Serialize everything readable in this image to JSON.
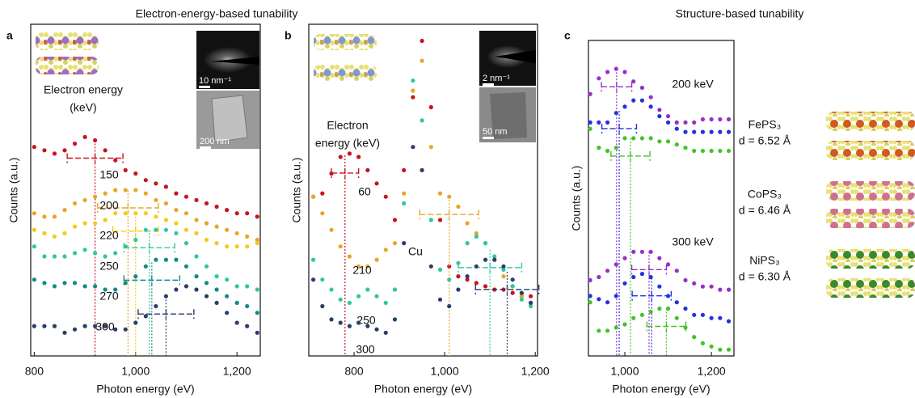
{
  "chart_data": [
    {
      "type": "scatter",
      "panel": "a",
      "header": "Electron-energy-based tunability",
      "xlabel": "Photon energy (eV)",
      "ylabel": "Counts (a.u.)",
      "annotations": [
        "Electron energy",
        "(keV)"
      ],
      "inset_labels": [
        "10 nm⁻¹",
        "200 nm"
      ],
      "xlim": [
        793,
        1246
      ],
      "ylim": [
        0,
        100
      ],
      "xticks": [
        800,
        {
          "value": 1000,
          "label": "1,000"
        },
        {
          "value": 1200,
          "label": "1,200"
        }
      ],
      "x": [
        800,
        820,
        840,
        860,
        880,
        900,
        920,
        940,
        960,
        980,
        1000,
        1020,
        1040,
        1060,
        1080,
        1100,
        1120,
        1140,
        1160,
        1180,
        1200,
        1220,
        1240
      ],
      "series": [
        {
          "name": "150",
          "color": "#c8141e",
          "peak": 920,
          "peak_error": 55,
          "values": [
            63,
            62,
            61,
            62,
            64,
            66,
            65,
            62,
            59,
            56,
            55,
            53,
            52,
            51,
            49,
            48,
            47,
            46,
            45,
            44,
            43,
            43,
            42
          ]
        },
        {
          "name": "200",
          "color": "#e8a628",
          "peak": 985,
          "peak_error": 60,
          "values": [
            43,
            42,
            42,
            44,
            46,
            47,
            48,
            49,
            50,
            50,
            50,
            49,
            47,
            46,
            44,
            43,
            41,
            40,
            39,
            38,
            37,
            36,
            35
          ]
        },
        {
          "name": "220",
          "color": "#f2cc1a",
          "peak": 1000,
          "peak_error": 45,
          "values": [
            38,
            37,
            36,
            37,
            39,
            40,
            40,
            41,
            43,
            43,
            43,
            43,
            42,
            41,
            40,
            38,
            37,
            35,
            34,
            33,
            33,
            33,
            34
          ]
        },
        {
          "name": "250",
          "color": "#2ec8a0",
          "peak": 1027,
          "peak_error": 50,
          "values": [
            33,
            30,
            30,
            30,
            31,
            32,
            31,
            30,
            31,
            33,
            35,
            38,
            38,
            38,
            37,
            34,
            30,
            27,
            24,
            23,
            21,
            21,
            20
          ]
        },
        {
          "name": "270",
          "color": "#138a86",
          "peak": 1032,
          "peak_error": 55,
          "values": [
            23,
            22,
            21,
            22,
            22,
            21,
            21,
            20,
            20,
            22,
            24,
            27,
            29,
            29,
            29,
            27,
            24,
            22,
            20,
            18,
            16,
            15,
            13
          ]
        },
        {
          "name": "300",
          "color": "#2b3d6b",
          "peak": 1060,
          "peak_error": 55,
          "values": [
            9,
            9,
            9,
            7,
            8,
            9,
            9,
            9,
            8,
            8,
            10,
            12,
            15,
            18,
            20,
            21,
            20,
            18,
            16,
            13,
            10,
            9,
            7
          ]
        }
      ]
    },
    {
      "type": "scatter",
      "panel": "b",
      "xlabel": "Photon energy (eV)",
      "ylabel": "Counts (a.u.)",
      "annotations": [
        "Electron",
        "energy (keV)",
        "Cu"
      ],
      "inset_labels": [
        "2 nm⁻¹",
        "50 nm"
      ],
      "xlim": [
        700,
        1205
      ],
      "ylim": [
        0,
        100
      ],
      "xticks": [
        800,
        {
          "value": 1000,
          "label": "1,000"
        },
        {
          "value": 1200,
          "label": "1,200"
        }
      ],
      "x": [
        710,
        730,
        750,
        770,
        790,
        810,
        830,
        850,
        870,
        890,
        910,
        930,
        950,
        970,
        990,
        1010,
        1030,
        1050,
        1070,
        1090,
        1110,
        1130,
        1150,
        1170,
        1190
      ],
      "series": [
        {
          "name": "60",
          "color": "#c8141e",
          "peak": 780,
          "peak_error": 30,
          "values": [
            48,
            49,
            55,
            60,
            61,
            60,
            56,
            52,
            48,
            41,
            56,
            78,
            95,
            75,
            41,
            27,
            24,
            23,
            22,
            21,
            20,
            20,
            19,
            18,
            18
          ]
        },
        {
          "name": "210",
          "color": "#e8a628",
          "peak": 1010,
          "peak_error": 65,
          "values": [
            48,
            43,
            38,
            33,
            30,
            27,
            27,
            29,
            32,
            34,
            49,
            80,
            89,
            63,
            49,
            48,
            45,
            40,
            37,
            34,
            29,
            24,
            21,
            18,
            16
          ]
        },
        {
          "name": "250",
          "color": "#2ec8a0",
          "peak": 1100,
          "peak_error": 70,
          "values": [
            29,
            23,
            20,
            17,
            16,
            18,
            20,
            18,
            16,
            20,
            46,
            83,
            71,
            41,
            26,
            23,
            28,
            34,
            36,
            34,
            30,
            26,
            21,
            17,
            15
          ]
        },
        {
          "name": "300",
          "color": "#2b3d6b",
          "peak": 1138,
          "peak_error": 70,
          "values": [
            23,
            15,
            11,
            10,
            9,
            10,
            9,
            8,
            7,
            11,
            34,
            63,
            56,
            27,
            17,
            15,
            20,
            24,
            27,
            29,
            29,
            27,
            23,
            19,
            16
          ]
        }
      ]
    },
    {
      "type": "scatter",
      "panel": "c",
      "header": "Structure-based tunability",
      "xlabel": "Photon energy (eV)",
      "ylabel": "Counts (a.u.)",
      "xlim": [
        916,
        1252
      ],
      "ylim": [
        0,
        100
      ],
      "xticks": [
        {
          "value": 1000,
          "label": "1,000"
        },
        {
          "value": 1200,
          "label": "1,200"
        }
      ],
      "x": [
        920,
        940,
        960,
        980,
        1000,
        1020,
        1040,
        1060,
        1080,
        1100,
        1120,
        1140,
        1160,
        1180,
        1200,
        1220,
        1240
      ],
      "legend": [
        {
          "name": "FePS₃",
          "detail": "d = 6.52 Å",
          "color": "#9a2ec8"
        },
        {
          "name": "CoPS₃",
          "detail": "d = 6.46 Å",
          "color": "#2233dd"
        },
        {
          "name": "NiPS₃",
          "detail": "d = 6.30 Å",
          "color": "#44c22a"
        }
      ],
      "groups": [
        {
          "label": "200 keV",
          "series": [
            {
              "color": "#9a2ec8",
              "peak": 981,
              "peak_error": 35,
              "values": [
                83,
                88,
                90,
                91,
                90,
                87,
                85,
                82,
                78,
                76,
                74,
                74,
                74,
                75,
                75,
                75,
                75
              ]
            },
            {
              "color": "#2233dd",
              "peak": 987,
              "peak_error": 40,
              "values": [
                74,
                74,
                74,
                77,
                79,
                81,
                81,
                79,
                76,
                74,
                72,
                71,
                71,
                71,
                71,
                71,
                71
              ]
            },
            {
              "color": "#44c22a",
              "peak": 1013,
              "peak_error": 45,
              "values": [
                72,
                66,
                65,
                66,
                69,
                69,
                69,
                69,
                68,
                68,
                67,
                66,
                65,
                65,
                65,
                65,
                65
              ]
            }
          ]
        },
        {
          "label": "300 keV",
          "series": [
            {
              "color": "#9a2ec8",
              "peak": 1056,
              "peak_error": 40,
              "values": [
                24,
                25,
                27,
                29,
                31,
                33,
                33,
                33,
                31,
                29,
                27,
                24,
                23,
                22,
                22,
                21,
                21
              ]
            },
            {
              "color": "#2233dd",
              "peak": 1062,
              "peak_error": 45,
              "values": [
                19,
                18,
                17,
                19,
                23,
                25,
                26,
                25,
                22,
                19,
                17,
                15,
                13,
                13,
                12,
                12,
                11
              ]
            },
            {
              "color": "#44c22a",
              "peak": 1096,
              "peak_error": 45,
              "values": [
                17,
                8,
                8,
                9,
                10,
                12,
                13,
                14,
                15,
                15,
                12,
                9,
                6,
                4,
                3,
                2,
                2
              ]
            }
          ]
        }
      ]
    }
  ]
}
